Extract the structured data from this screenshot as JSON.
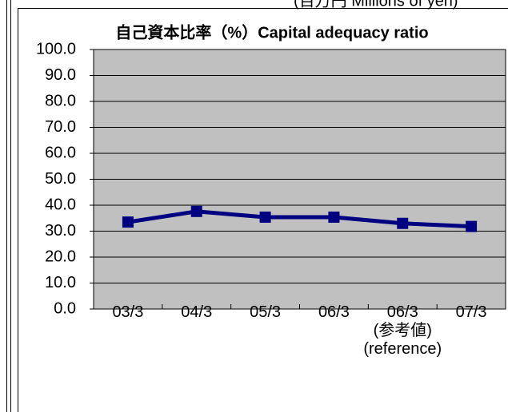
{
  "unit_note": "(百万円 Millions of yen)",
  "chart_data": {
    "type": "line",
    "title": "自己資本比率（%）Capital adequacy ratio",
    "categories": [
      "03/3",
      "04/3",
      "05/3",
      "06/3",
      "06/3\n(参考値)\n(reference)",
      "07/3"
    ],
    "series": [
      {
        "name": "Capital adequacy ratio",
        "color": "#000080",
        "values": [
          33.5,
          37.6,
          35.4,
          35.4,
          33.0,
          31.8
        ]
      }
    ],
    "ylim": [
      0,
      100
    ],
    "yticks": [
      {
        "value": 0,
        "label": "0.0"
      },
      {
        "value": 10,
        "label": "10.0"
      },
      {
        "value": 20,
        "label": "20.0"
      },
      {
        "value": 30,
        "label": "30.0"
      },
      {
        "value": 40,
        "label": "40.0"
      },
      {
        "value": 50,
        "label": "50.0"
      },
      {
        "value": 60,
        "label": "60.0"
      },
      {
        "value": 70,
        "label": "70.0"
      },
      {
        "value": 80,
        "label": "80.0"
      },
      {
        "value": 90,
        "label": "90.0"
      },
      {
        "value": 100,
        "label": "100.0"
      }
    ],
    "grid": true
  }
}
